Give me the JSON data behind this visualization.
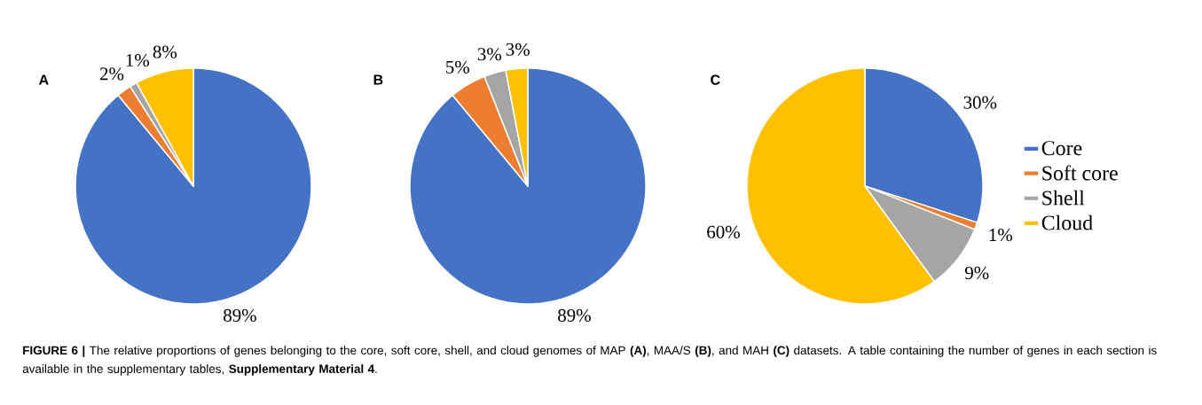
{
  "chart_data": [
    {
      "type": "pie",
      "title": "A",
      "values": [
        89,
        2,
        1,
        8
      ],
      "colors": [
        "#4472c4",
        "#ed7d31",
        "#a5a5a5",
        "#ffc000"
      ],
      "value_labels": [
        "89%",
        "2%",
        "1%",
        "8%"
      ],
      "annotations": [
        "**FIGURE 6 |** The relative proportions of genes belonging to the core, soft core, shell, and cloud genomes of MAP **(A)**, MAA/S **(B)**, and MAH **(C)** datasets. A table containing the number of genes in each section is available in the supplementary tables, **Supplementary Material 4**."
      ]
    },
    {
      "type": "pie",
      "title": "B",
      "values": [
        89,
        5,
        3,
        3
      ],
      "colors": [
        "#4472c4",
        "#ed7d31",
        "#a5a5a5",
        "#ffc000"
      ],
      "value_labels": [
        "89%",
        "5%",
        "3%",
        "3%"
      ]
    },
    {
      "type": "pie",
      "title": "C",
      "categories": [
        "Core",
        "Soft core",
        "Shell",
        "Cloud"
      ],
      "values": [
        30,
        1,
        9,
        60
      ],
      "colors": [
        "#4472c4",
        "#ed7d31",
        "#a5a5a5",
        "#ffc000"
      ],
      "value_labels": [
        "30%",
        "1%",
        "9%",
        "60%"
      ],
      "legend": "right"
    }
  ]
}
